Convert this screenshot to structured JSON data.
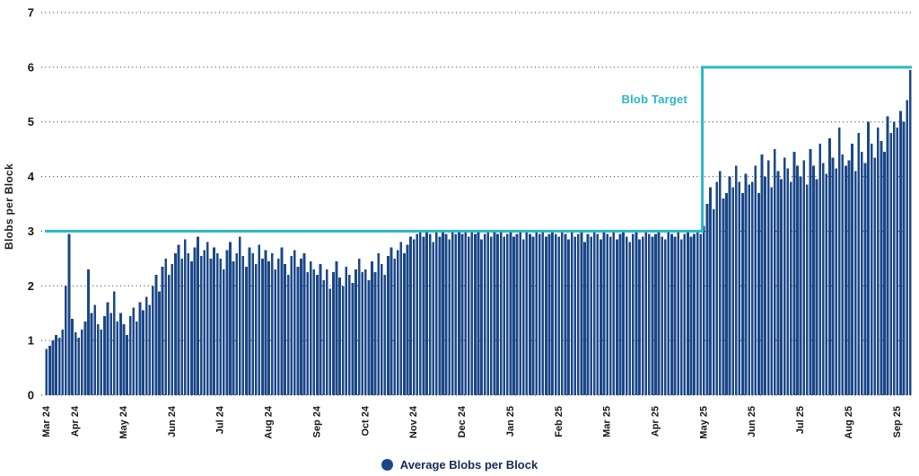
{
  "chart_data": {
    "type": "bar",
    "title": "",
    "xlabel": "",
    "ylabel": "Blobs per Block",
    "ylim": [
      0,
      7
    ],
    "yticks": [
      0,
      1,
      2,
      3,
      4,
      5,
      6,
      7
    ],
    "grid": "dotted horizontal lines at each integer",
    "legend_position": "bottom-center",
    "x_range": "Mar 2024 - Sep 2025",
    "bin_days": 2,
    "month_ticks": [
      {
        "label": "Mar 24",
        "index": 0
      },
      {
        "label": "Apr 24",
        "index": 9
      },
      {
        "label": "May 24",
        "index": 24
      },
      {
        "label": "Jun 24",
        "index": 39
      },
      {
        "label": "Jul 24",
        "index": 54
      },
      {
        "label": "Aug 24",
        "index": 69
      },
      {
        "label": "Sep 24",
        "index": 84
      },
      {
        "label": "Oct 24",
        "index": 99
      },
      {
        "label": "Nov 24",
        "index": 114
      },
      {
        "label": "Dec 24",
        "index": 129
      },
      {
        "label": "Jan 25",
        "index": 144
      },
      {
        "label": "Feb 25",
        "index": 159
      },
      {
        "label": "Mar 25",
        "index": 174
      },
      {
        "label": "Apr 25",
        "index": 189
      },
      {
        "label": "May 25",
        "index": 204
      },
      {
        "label": "Jun 25",
        "index": 219
      },
      {
        "label": "Jul 25",
        "index": 234
      },
      {
        "label": "Aug 25",
        "index": 249
      },
      {
        "label": "Sep 25",
        "index": 264
      }
    ],
    "target_line": {
      "name": "Blob Target",
      "color": "#2ab7c8",
      "before_value": 3,
      "after_value": 6,
      "step_index": 204
    },
    "series": [
      {
        "name": "Average Blobs per Block",
        "color": "#1b4788",
        "values": [
          0.85,
          0.9,
          1.0,
          1.1,
          1.05,
          1.2,
          2.0,
          2.95,
          1.4,
          1.15,
          1.05,
          1.2,
          1.35,
          2.3,
          1.5,
          1.65,
          1.3,
          1.2,
          1.45,
          1.7,
          1.5,
          1.9,
          1.35,
          1.5,
          1.3,
          1.1,
          1.45,
          1.6,
          1.35,
          1.7,
          1.55,
          1.8,
          1.65,
          2.0,
          2.2,
          1.9,
          2.35,
          2.5,
          2.2,
          2.4,
          2.6,
          2.75,
          2.5,
          2.85,
          2.6,
          2.45,
          2.7,
          2.9,
          2.55,
          2.65,
          2.8,
          2.5,
          2.7,
          2.6,
          2.5,
          2.3,
          2.65,
          2.8,
          2.45,
          2.6,
          2.9,
          2.55,
          2.35,
          2.7,
          2.6,
          2.4,
          2.75,
          2.5,
          2.65,
          2.45,
          2.6,
          2.3,
          2.5,
          2.7,
          2.4,
          2.2,
          2.55,
          2.65,
          2.35,
          2.5,
          2.6,
          2.25,
          2.45,
          2.3,
          2.2,
          2.4,
          2.1,
          2.3,
          1.95,
          2.25,
          2.45,
          2.15,
          2.0,
          2.35,
          2.2,
          2.05,
          2.3,
          2.5,
          2.25,
          2.3,
          2.1,
          2.45,
          2.25,
          2.6,
          2.4,
          2.2,
          2.55,
          2.7,
          2.5,
          2.65,
          2.8,
          2.6,
          2.75,
          2.9,
          2.85,
          2.95,
          3.0,
          2.9,
          3.0,
          2.95,
          2.8,
          3.0,
          2.9,
          3.0,
          2.95,
          2.85,
          3.0,
          2.95,
          3.0,
          2.95,
          3.0,
          2.9,
          3.0,
          2.95,
          3.0,
          2.85,
          2.95,
          3.0,
          2.9,
          3.0,
          2.95,
          3.0,
          2.9,
          2.95,
          3.0,
          2.9,
          2.95,
          3.0,
          2.85,
          3.0,
          2.95,
          2.9,
          3.0,
          2.95,
          3.0,
          2.9,
          2.95,
          3.0,
          2.95,
          2.9,
          3.0,
          2.95,
          2.85,
          3.0,
          2.9,
          2.95,
          3.0,
          2.8,
          2.95,
          2.9,
          3.0,
          2.95,
          2.85,
          3.0,
          2.95,
          2.9,
          3.0,
          2.85,
          2.95,
          3.0,
          2.9,
          2.8,
          2.95,
          3.0,
          2.85,
          2.9,
          3.0,
          2.95,
          2.9,
          2.95,
          3.0,
          2.9,
          2.85,
          3.0,
          2.95,
          2.9,
          3.0,
          2.85,
          2.95,
          3.0,
          2.9,
          2.95,
          3.0,
          2.95,
          3.1,
          3.5,
          3.8,
          3.4,
          3.9,
          4.1,
          3.6,
          3.7,
          4.0,
          3.8,
          4.2,
          3.9,
          3.7,
          4.05,
          3.85,
          3.9,
          4.2,
          3.7,
          4.4,
          4.0,
          4.3,
          3.8,
          4.5,
          4.1,
          3.95,
          4.35,
          4.15,
          3.9,
          4.45,
          4.2,
          4.0,
          4.3,
          3.85,
          4.5,
          4.2,
          3.95,
          4.6,
          4.25,
          4.05,
          4.7,
          4.35,
          4.15,
          4.9,
          4.4,
          4.2,
          4.3,
          4.6,
          4.1,
          4.8,
          4.45,
          4.25,
          5.0,
          4.6,
          4.35,
          4.9,
          4.65,
          4.45,
          5.1,
          4.8,
          5.0,
          4.9,
          5.2,
          5.0,
          5.4,
          5.95
        ]
      }
    ]
  }
}
